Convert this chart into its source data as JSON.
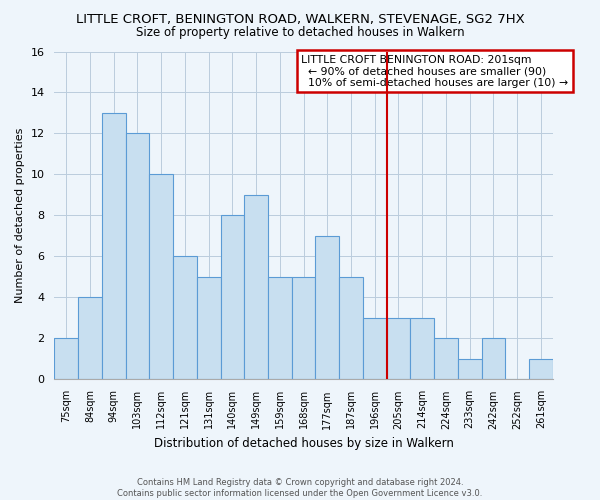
{
  "title": "LITTLE CROFT, BENINGTON ROAD, WALKERN, STEVENAGE, SG2 7HX",
  "subtitle": "Size of property relative to detached houses in Walkern",
  "xlabel": "Distribution of detached houses by size in Walkern",
  "ylabel": "Number of detached properties",
  "bar_labels": [
    "75sqm",
    "84sqm",
    "94sqm",
    "103sqm",
    "112sqm",
    "121sqm",
    "131sqm",
    "140sqm",
    "149sqm",
    "159sqm",
    "168sqm",
    "177sqm",
    "187sqm",
    "196sqm",
    "205sqm",
    "214sqm",
    "224sqm",
    "233sqm",
    "242sqm",
    "252sqm",
    "261sqm"
  ],
  "bar_values": [
    2,
    4,
    13,
    12,
    10,
    6,
    5,
    8,
    9,
    5,
    5,
    7,
    5,
    3,
    3,
    3,
    2,
    1,
    2,
    0,
    1
  ],
  "bar_color": "#C8DFF0",
  "bar_edge_color": "#5B9BD5",
  "reference_line_index": 14,
  "reference_line_color": "#CC0000",
  "ylim": [
    0,
    16
  ],
  "yticks": [
    0,
    2,
    4,
    6,
    8,
    10,
    12,
    14,
    16
  ],
  "legend_title": "LITTLE CROFT BENINGTON ROAD: 201sqm",
  "legend_line1": "← 90% of detached houses are smaller (90)",
  "legend_line2": "10% of semi-detached houses are larger (10) →",
  "legend_box_color": "#FFFFFF",
  "legend_border_color": "#CC0000",
  "footer_line1": "Contains HM Land Registry data © Crown copyright and database right 2024.",
  "footer_line2": "Contains public sector information licensed under the Open Government Licence v3.0.",
  "background_color": "#EEF5FB",
  "plot_bg_color": "#EEF5FB",
  "grid_color": "#BBCCDD",
  "title_fontsize": 9.5,
  "subtitle_fontsize": 8.5
}
